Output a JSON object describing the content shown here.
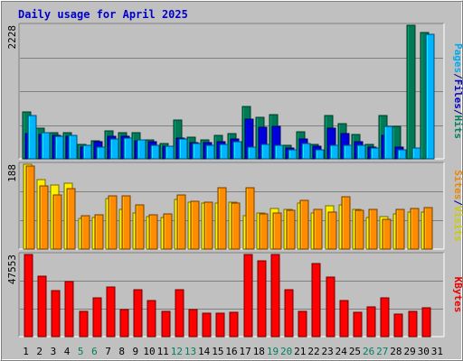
{
  "chart_data": {
    "type": "bar",
    "title": "Daily usage for April 2025",
    "categories": [
      "1",
      "2",
      "3",
      "4",
      "5",
      "6",
      "7",
      "8",
      "9",
      "10",
      "11",
      "12",
      "13",
      "14",
      "15",
      "16",
      "17",
      "18",
      "19",
      "20",
      "21",
      "22",
      "23",
      "24",
      "25",
      "26",
      "27",
      "28",
      "29",
      "30",
      "31"
    ],
    "weekend_days": [
      "5",
      "6",
      "12",
      "13",
      "19",
      "20",
      "26",
      "27"
    ],
    "panels": [
      {
        "id": "hits-files-pages",
        "max_label": "2228",
        "ylim": [
          0,
          2228
        ],
        "side_label": [
          {
            "text": "Pages",
            "color": "#00aaee"
          },
          {
            "text": "/",
            "color": "#000080"
          },
          {
            "text": "Files",
            "color": "#0000cc"
          },
          {
            "text": "/",
            "color": "#000080"
          },
          {
            "text": "Hits",
            "color": "#008060"
          }
        ],
        "series": [
          {
            "name": "Hits",
            "color": "#007a55",
            "values": [
              790,
              510,
              435,
              430,
              240,
              300,
              470,
              435,
              440,
              310,
              255,
              640,
              355,
              310,
              385,
              420,
              880,
              690,
              735,
              225,
              450,
              240,
              720,
              585,
              405,
              235,
              720,
              545,
              2225,
              2110,
              0
            ]
          },
          {
            "name": "Files",
            "color": "#0000dd",
            "values": [
              420,
              410,
              395,
              380,
              200,
              280,
              370,
              370,
              300,
              280,
              210,
              340,
              270,
              270,
              285,
              330,
              660,
              525,
              535,
              180,
              330,
              210,
              510,
              425,
              290,
              200,
              390,
              200,
              0,
              0,
              0
            ]
          },
          {
            "name": "Pages",
            "color": "#00b4ff",
            "values": [
              725,
              430,
              380,
              390,
              230,
              195,
              330,
              350,
              310,
              230,
              210,
              330,
              260,
              220,
              240,
              290,
              200,
              245,
              230,
              150,
              255,
              155,
              225,
              230,
              220,
              185,
              535,
              145,
              180,
              2075,
              0
            ]
          }
        ]
      },
      {
        "id": "visits-sites",
        "max_label": "188",
        "ylim": [
          0,
          188
        ],
        "side_label": [
          {
            "text": "Sites",
            "color": "#ee8800"
          },
          {
            "text": "/",
            "color": "#000080"
          },
          {
            "text": "Visits",
            "color": "#cccc00"
          }
        ],
        "series": [
          {
            "name": "Visits",
            "color": "#ffee00",
            "values": [
              188,
              153,
              141,
              146,
              68,
              69,
              112,
              87,
              80,
              71,
              70,
              110,
              105,
              102,
              102,
              105,
              73,
              80,
              89,
              87,
              102,
              80,
              96,
              99,
              88,
              70,
              71,
              78,
              82,
              82,
              0
            ]
          },
          {
            "name": "Sites",
            "color": "#ff8c00",
            "values": [
              183,
              140,
              120,
              134,
              73,
              76,
              118,
              118,
              98,
              75,
              77,
              120,
              106,
              103,
              136,
              101,
              135,
              78,
              80,
              85,
              107,
              87,
              82,
              115,
              86,
              88,
              65,
              87,
              89,
              91,
              0
            ]
          }
        ]
      },
      {
        "id": "kbytes",
        "max_label": "47553",
        "ylim": [
          0,
          47553
        ],
        "side_label": [
          {
            "text": "KBytes",
            "color": "#ee0000"
          }
        ],
        "series": [
          {
            "name": "KBytes",
            "color": "#ff0000",
            "values": [
              47553,
              34830,
              26640,
              31780,
              14800,
              22280,
              28500,
              15540,
              27250,
              20690,
              14700,
              27260,
              15830,
              13770,
              13680,
              14060,
              47553,
              43930,
              47553,
              27260,
              14690,
              42430,
              34470,
              20960,
              14130,
              17310,
              22560,
              13170,
              14380,
              16800,
              0
            ]
          }
        ]
      }
    ]
  }
}
